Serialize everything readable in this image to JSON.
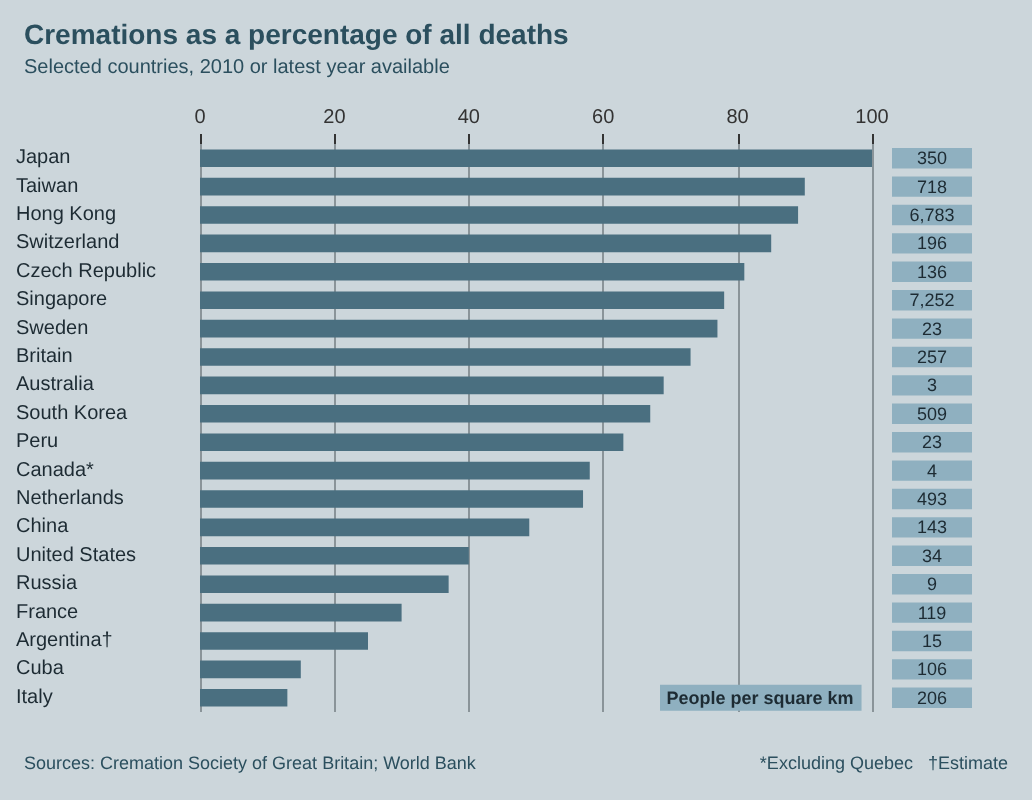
{
  "chart_data": [
    {
      "type": "bar",
      "orientation": "horizontal",
      "title": "Cremations as a percentage of all deaths",
      "subtitle": "Selected countries, 2010 or latest year available",
      "categories": [
        "Japan",
        "Taiwan",
        "Hong Kong",
        "Switzerland",
        "Czech Republic",
        "Singapore",
        "Sweden",
        "Britain",
        "Australia",
        "South Korea",
        "Peru",
        "Canada*",
        "Netherlands",
        "China",
        "United States",
        "Russia",
        "France",
        "Argentina†",
        "Cuba",
        "Italy"
      ],
      "color": "#4a6f80",
      "values": [
        100,
        90,
        89,
        85,
        81,
        78,
        77,
        73,
        69,
        67,
        63,
        58,
        57,
        49,
        40,
        37,
        30,
        25,
        15,
        13
      ],
      "xlim": [
        0,
        100
      ],
      "xticks": [
        0,
        20,
        40,
        60,
        80,
        100
      ],
      "grid": "x",
      "annotations": [
        "Sources: Cremation Society of Great Britain; World Bank",
        "*Excluding Quebec",
        "†Estimate"
      ]
    },
    {
      "type": "other",
      "title": "People per square km",
      "color": "#8fb0c0",
      "values": [
        350,
        718,
        6783,
        196,
        136,
        7252,
        23,
        257,
        3,
        509,
        23,
        4,
        493,
        143,
        34,
        9,
        119,
        15,
        106,
        206
      ],
      "value_labels": [
        "350",
        "718",
        "6,783",
        "196",
        "136",
        "7,252",
        "23",
        "257",
        "3",
        "509",
        "23",
        "4",
        "493",
        "143",
        "34",
        "9",
        "119",
        "15",
        "106",
        "206"
      ]
    }
  ]
}
